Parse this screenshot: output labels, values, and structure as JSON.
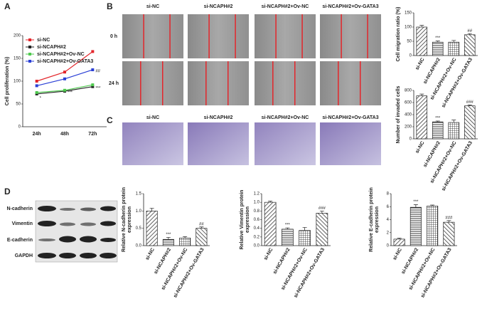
{
  "panel_labels": [
    "A",
    "B",
    "C",
    "D"
  ],
  "migration_images": {
    "columns": [
      "si-NC",
      "si-NCAPH#2",
      "si-NCAPH#2+Ov-NC",
      "si-NCAPH#2+Ov-GATA3"
    ],
    "rows": [
      "0 h",
      "24 h"
    ]
  },
  "invasion_images": {
    "columns": [
      "si-NC",
      "si-NCAPH#2",
      "si-NCAPH#2+Ov-NC",
      "si-NCAPH#2+Ov-GATA3"
    ]
  },
  "blot": {
    "labels": [
      "N-cadherin",
      "Vimentin",
      "E-cadherin",
      "GAPDH"
    ]
  },
  "chart_data": [
    {
      "type": "line",
      "ylabel": "Cell proliferation (%)",
      "categories": [
        "24h",
        "48h",
        "72h"
      ],
      "ylim": [
        0,
        200
      ],
      "yticks": [
        0,
        50,
        100,
        150,
        200
      ],
      "series": [
        {
          "name": "si-NC",
          "color": "#e3262b",
          "values": [
            100,
            120,
            165
          ],
          "annotations": [
            null,
            null,
            null
          ]
        },
        {
          "name": "si-NCAPH#2",
          "color": "#222222",
          "values": [
            72,
            78,
            88
          ],
          "annotations": [
            "*",
            "***",
            "***"
          ]
        },
        {
          "name": "si-NCAPH#2+Ov-NC",
          "color": "#4ec94e",
          "values": [
            75,
            80,
            92
          ],
          "annotations": [
            null,
            null,
            null
          ]
        },
        {
          "name": "si-NCAPH#2+Ov-GATA3",
          "color": "#2a3fd6",
          "values": [
            90,
            105,
            125
          ],
          "annotations": [
            null,
            null,
            "##"
          ]
        }
      ]
    },
    {
      "type": "bar",
      "ylabel": "Cell migration ratio (%)",
      "categories": [
        "si-NC",
        "si-NCAPH#2",
        "si-NCAPH#2+Ov-NC",
        "si-NCAPH#2+Ov-GATA3"
      ],
      "values": [
        100,
        47,
        47,
        73
      ],
      "errors": [
        6,
        4,
        6,
        4
      ],
      "annotations": [
        null,
        "***",
        null,
        "##"
      ],
      "ylim": [
        0,
        150
      ],
      "yticks": [
        0,
        50,
        100,
        150
      ]
    },
    {
      "type": "bar",
      "ylabel": "Number of invaded cells",
      "categories": [
        "si-NC",
        "si-NCAPH#2",
        "si-NCAPH#2+Ov-NC",
        "si-NCAPH#2+Ov-GATA3"
      ],
      "values": [
        710,
        280,
        270,
        545
      ],
      "errors": [
        30,
        15,
        40,
        15
      ],
      "annotations": [
        null,
        "***",
        null,
        "###"
      ],
      "ylim": [
        0,
        800
      ],
      "yticks": [
        0,
        200,
        400,
        600,
        800
      ]
    },
    {
      "type": "bar",
      "ylabel": [
        "Relative N-cadherin protein",
        "expression"
      ],
      "categories": [
        "si-NC",
        "si-NCAPH#2",
        "si-NCAPH#2+Ov-NC",
        "si-NCAPH#2+Ov-GATA3"
      ],
      "values": [
        1.0,
        0.18,
        0.22,
        0.5
      ],
      "errors": [
        0.08,
        0.06,
        0.04,
        0.04
      ],
      "annotations": [
        null,
        "***",
        null,
        "##"
      ],
      "ylim": [
        0,
        1.5
      ],
      "yticks": [
        {
          "value": 0,
          "label": "0.0"
        },
        0.5,
        {
          "value": 1,
          "label": "1.0"
        },
        1.5
      ]
    },
    {
      "type": "bar",
      "ylabel": [
        "Relative Vimentin protein",
        "expression"
      ],
      "categories": [
        "si-NC",
        "si-NCAPH#2",
        "si-NCAPH#2+Ov-NC",
        "si-NCAPH#2+Ov-GATA3"
      ],
      "values": [
        1.0,
        0.38,
        0.35,
        0.75
      ],
      "errors": [
        0.03,
        0.03,
        0.07,
        0.05
      ],
      "annotations": [
        null,
        "***",
        null,
        "###"
      ],
      "ylim": [
        0,
        1.2
      ],
      "yticks": [
        {
          "value": 0,
          "label": "0.0"
        },
        0.2,
        0.4,
        0.6,
        0.8,
        {
          "value": 1,
          "label": "1.0"
        },
        1.2
      ]
    },
    {
      "type": "bar",
      "ylabel": [
        "Relative E-cadherin protein",
        "expression"
      ],
      "categories": [
        "si-NC",
        "si-NCAPH#2",
        "si-NCAPH#2+Ov-NC",
        "si-NCAPH#2+Ov-GATA3"
      ],
      "values": [
        1.0,
        5.9,
        6.1,
        3.6
      ],
      "errors": [
        0.15,
        0.4,
        0.15,
        0.25
      ],
      "annotations": [
        null,
        "***",
        null,
        "###"
      ],
      "ylim": [
        0,
        8
      ],
      "yticks": [
        0,
        2,
        4,
        6,
        8
      ]
    }
  ]
}
